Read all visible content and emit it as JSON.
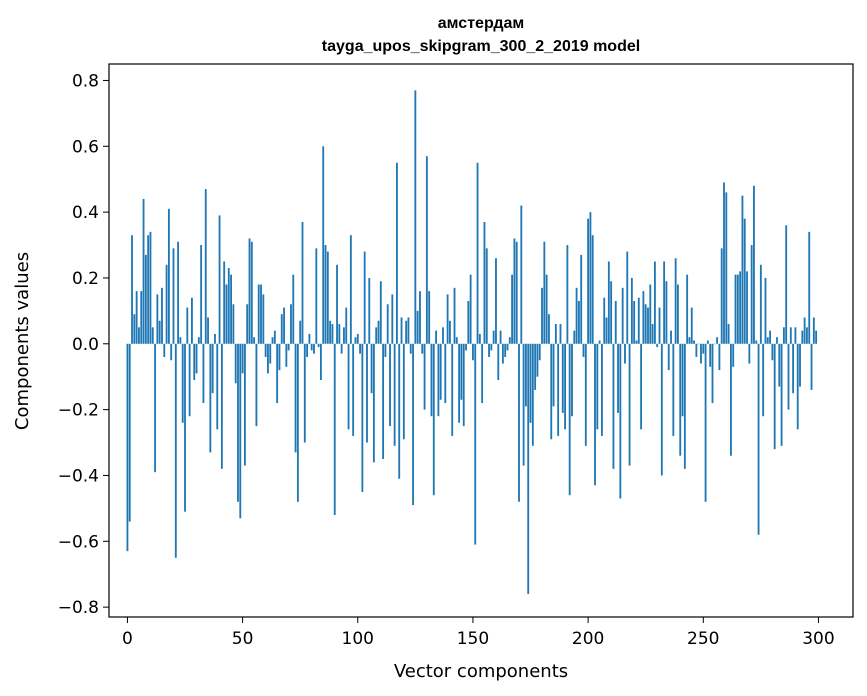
{
  "chart_data": {
    "type": "bar",
    "title": "амстердам",
    "subtitle": "tayga_upos_skipgram_300_2_2019 model",
    "xlabel": "Vector components",
    "ylabel": "Components values",
    "xlim": [
      -8,
      315
    ],
    "ylim": [
      -0.83,
      0.85
    ],
    "xticks": [
      0,
      50,
      100,
      150,
      200,
      250,
      300
    ],
    "yticks": [
      -0.8,
      -0.6,
      -0.4,
      -0.2,
      0.0,
      0.2,
      0.4,
      0.6,
      0.8
    ],
    "xtick_labels": [
      "0",
      "50",
      "100",
      "150",
      "200",
      "250",
      "300"
    ],
    "ytick_labels": [
      "−0.8",
      "−0.6",
      "−0.4",
      "−0.2",
      "0.0",
      "0.2",
      "0.4",
      "0.6",
      "0.8"
    ],
    "grid": false,
    "legend": "none",
    "bar_color": "#1f77b4",
    "values": [
      -0.63,
      -0.54,
      0.33,
      0.09,
      0.16,
      0.05,
      0.16,
      0.44,
      0.27,
      0.33,
      0.34,
      0.05,
      -0.39,
      0.15,
      0.07,
      0.17,
      -0.04,
      0.24,
      0.41,
      -0.05,
      0.29,
      -0.65,
      0.31,
      0.02,
      -0.24,
      -0.51,
      0.11,
      -0.22,
      0.14,
      -0.11,
      -0.09,
      0.02,
      0.3,
      -0.18,
      0.47,
      0.08,
      -0.33,
      -0.15,
      0.03,
      -0.26,
      0.39,
      -0.38,
      0.25,
      0.18,
      0.23,
      0.21,
      0.12,
      -0.12,
      -0.48,
      -0.53,
      -0.09,
      -0.37,
      0.12,
      0.32,
      0.31,
      0.02,
      -0.25,
      0.18,
      0.18,
      0.15,
      -0.04,
      -0.09,
      -0.06,
      0.02,
      0.04,
      -0.18,
      -0.08,
      0.09,
      0.11,
      -0.07,
      -0.02,
      0.12,
      0.21,
      -0.33,
      -0.48,
      0.07,
      0.37,
      -0.3,
      -0.04,
      0.03,
      -0.02,
      -0.03,
      0.29,
      -0.01,
      -0.11,
      0.6,
      0.3,
      0.28,
      0.07,
      0.06,
      -0.52,
      0.24,
      0.06,
      -0.03,
      0.05,
      0.11,
      -0.26,
      0.33,
      -0.28,
      0.02,
      0.03,
      -0.03,
      -0.45,
      0.28,
      -0.3,
      0.2,
      -0.15,
      -0.36,
      0.05,
      0.07,
      0.19,
      -0.35,
      -0.04,
      0.12,
      -0.25,
      0.15,
      -0.31,
      0.55,
      -0.41,
      0.08,
      -0.29,
      0.07,
      0.08,
      -0.03,
      -0.49,
      0.77,
      0.1,
      0.16,
      -0.03,
      -0.2,
      0.57,
      0.16,
      -0.22,
      -0.46,
      0.04,
      -0.22,
      -0.17,
      0.05,
      -0.18,
      0.15,
      0.07,
      -0.28,
      0.17,
      0.02,
      -0.24,
      -0.17,
      -0.25,
      -0.02,
      0.13,
      0.21,
      -0.05,
      -0.61,
      0.55,
      0.03,
      -0.18,
      0.37,
      0.29,
      -0.04,
      -0.02,
      0.04,
      0.26,
      -0.11,
      0.04,
      -0.06,
      -0.04,
      -0.02,
      0.02,
      0.21,
      0.32,
      0.31,
      -0.48,
      0.42,
      -0.37,
      -0.19,
      -0.76,
      -0.24,
      -0.31,
      -0.14,
      -0.1,
      -0.05,
      0.17,
      0.31,
      0.21,
      0.09,
      -0.29,
      -0.19,
      0.06,
      -0.28,
      0.06,
      -0.21,
      -0.26,
      0.3,
      -0.46,
      -0.22,
      0.04,
      0.17,
      0.13,
      0.27,
      -0.04,
      -0.31,
      0.38,
      0.4,
      0.33,
      -0.43,
      -0.26,
      0.01,
      -0.28,
      0.14,
      0.08,
      0.25,
      0.19,
      -0.38,
      0.13,
      -0.21,
      -0.47,
      0.17,
      -0.06,
      0.28,
      -0.37,
      0.2,
      0.13,
      0.01,
      0.14,
      -0.26,
      0.16,
      0.12,
      0.11,
      0.18,
      0.06,
      0.25,
      -0.01,
      0.11,
      -0.4,
      0.25,
      0.19,
      -0.08,
      0.04,
      -0.28,
      0.26,
      0.18,
      -0.34,
      -0.22,
      -0.38,
      0.21,
      0.02,
      0.11,
      0.01,
      -0.04,
      0.0,
      -0.06,
      -0.03,
      -0.48,
      0.01,
      -0.07,
      -0.18,
      0.0,
      0.02,
      -0.08,
      0.29,
      0.49,
      0.46,
      0.06,
      -0.34,
      -0.07,
      0.21,
      0.21,
      0.22,
      0.45,
      0.38,
      0.22,
      -0.06,
      0.3,
      0.48,
      0.01,
      -0.58,
      0.24,
      -0.22,
      0.2,
      0.02,
      0.04,
      -0.05,
      -0.32,
      0.02,
      -0.13,
      -0.31,
      0.05,
      0.36,
      -0.2,
      0.05,
      -0.15,
      0.05,
      -0.26,
      -0.13,
      0.04,
      0.08,
      0.05,
      0.34,
      -0.14,
      0.08,
      0.04
    ]
  }
}
